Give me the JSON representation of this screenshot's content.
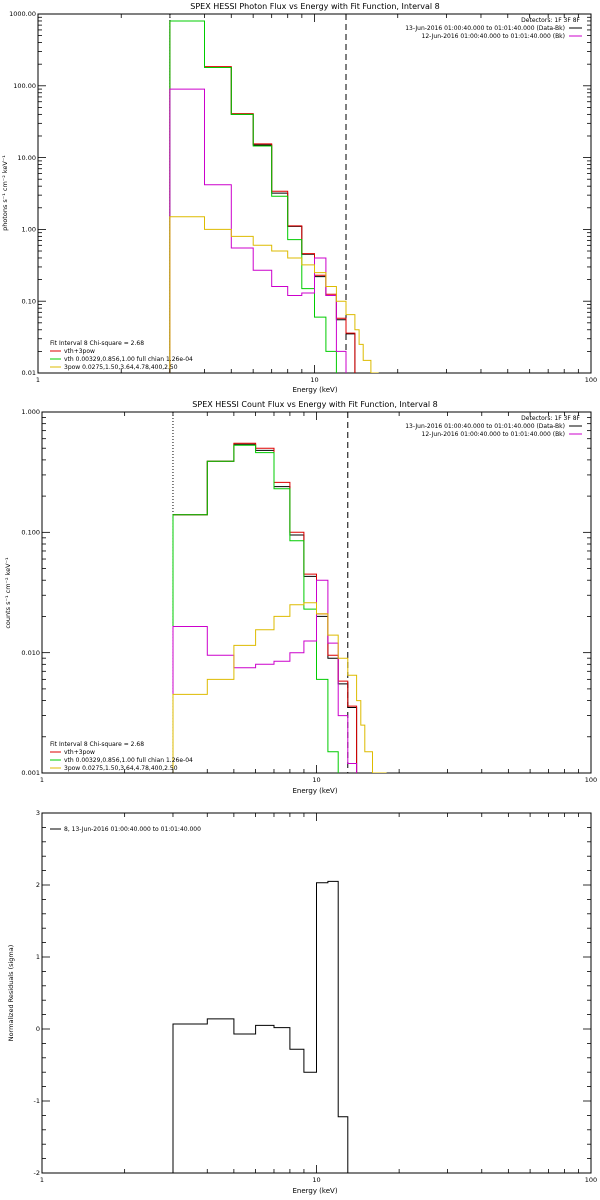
{
  "chart_data": [
    {
      "type": "line",
      "title": "SPEX HESSI Photon Flux vs Energy with Fit Function, Interval 8",
      "xlabel": "Energy (keV)",
      "ylabel": "photons s⁻¹ cm⁻² keV⁻¹",
      "xscale": "log",
      "yscale": "log",
      "xlim": [
        1,
        100
      ],
      "ylim": [
        0.01,
        1000
      ],
      "x_ticks": [
        {
          "v": 1,
          "label": "1"
        },
        {
          "v": 10,
          "label": "10"
        },
        {
          "v": 100,
          "label": "100"
        }
      ],
      "y_ticks": [
        {
          "v": 0.01,
          "label": "0.01"
        },
        {
          "v": 0.1,
          "label": "0.10"
        },
        {
          "v": 1,
          "label": "1.00"
        },
        {
          "v": 10,
          "label": "10.00"
        },
        {
          "v": 100,
          "label": "100.00"
        },
        {
          "v": 1000,
          "label": "1000.00"
        }
      ],
      "vlines": [
        {
          "x": 3.0,
          "style": "dotted"
        },
        {
          "x": 13.0,
          "style": "dashed"
        }
      ],
      "header_lines": [
        {
          "text": "Detectors: 1F 3F 8F",
          "swatch": false
        },
        {
          "text": "13-Jun-2016 01:00:40.000 to 01:01:40.000 (Data-Bk)",
          "swatch": true,
          "color": "#000000"
        },
        {
          "text": "12-Jun-2016 01:00:40.000 to 01:01:40.000 (Bk)",
          "swatch": true,
          "color": "#cc00cc"
        }
      ],
      "fit_header": "Fit Interval 8   Chi-square = 2.68",
      "legend": [
        {
          "text": "vth+3pow",
          "color": "#dd0000"
        },
        {
          "text": "vth 0.00329,0.856,1.00  full chian 1.26e-04",
          "color": "#00cc00"
        },
        {
          "text": "3pow 0.0275,1.50,3.64,4.78,400,2.50",
          "color": "#ddbb00"
        }
      ],
      "bin_edges": [
        3.0,
        3.5,
        4.0,
        4.5,
        5.0,
        5.5,
        6.0,
        6.5,
        7.0,
        7.5,
        8.0,
        8.5,
        9.0,
        9.5,
        10.0,
        10.5,
        11.0,
        11.5,
        12.0,
        12.5,
        13.0,
        13.5,
        14.0,
        14.5,
        15.0,
        16.0,
        17.0,
        18.0
      ],
      "series": [
        {
          "color": "#000000",
          "values": [
            800,
            800,
            180,
            180,
            40,
            40,
            15,
            15,
            3.2,
            3.2,
            1.1,
            1.1,
            0.45,
            0.45,
            0.22,
            0.22,
            0.12,
            0.12,
            0.055,
            0.055,
            0.035,
            0.035,
            null,
            null,
            null,
            null,
            null
          ]
        },
        {
          "color": "#dd0000",
          "values": [
            800,
            800,
            185,
            185,
            41,
            41,
            15.5,
            15.5,
            3.4,
            3.4,
            1.12,
            1.12,
            0.46,
            0.46,
            0.23,
            0.23,
            0.125,
            0.125,
            0.058,
            0.058,
            0.036,
            0.036,
            null,
            null,
            null,
            null,
            null
          ]
        },
        {
          "color": "#00cc00",
          "values": [
            800,
            800,
            180,
            180,
            40,
            40,
            14.5,
            14.5,
            2.9,
            2.9,
            0.72,
            0.72,
            0.15,
            0.15,
            0.06,
            0.06,
            0.02,
            0.02,
            null,
            null,
            null,
            null,
            null,
            null,
            null,
            null,
            null
          ]
        },
        {
          "color": "#cc00cc",
          "values": [
            90,
            90,
            4.2,
            4.2,
            0.55,
            0.55,
            0.27,
            0.27,
            0.16,
            0.16,
            0.12,
            0.12,
            0.13,
            0.13,
            0.4,
            0.4,
            0.12,
            0.12,
            0.02,
            0.02,
            0.008,
            0.008,
            null,
            null,
            null,
            null,
            null
          ]
        },
        {
          "color": "#ddbb00",
          "values": [
            1.5,
            1.5,
            1.0,
            1.0,
            0.8,
            0.8,
            0.6,
            0.6,
            0.5,
            0.5,
            0.4,
            0.4,
            0.32,
            0.32,
            0.25,
            0.25,
            0.16,
            0.16,
            0.1,
            0.1,
            0.065,
            0.065,
            0.04,
            0.025,
            0.015,
            0.01,
            0.008
          ]
        }
      ]
    },
    {
      "type": "line",
      "title": "SPEX HESSI Count Flux vs Energy with Fit Function, Interval 8",
      "xlabel": "Energy (keV)",
      "ylabel": "counts s⁻¹ cm⁻² keV⁻¹",
      "xscale": "log",
      "yscale": "log",
      "xlim": [
        1,
        100
      ],
      "ylim": [
        0.001,
        1
      ],
      "x_ticks": [
        {
          "v": 1,
          "label": "1"
        },
        {
          "v": 10,
          "label": "10"
        },
        {
          "v": 100,
          "label": "100"
        }
      ],
      "y_ticks": [
        {
          "v": 0.001,
          "label": "0.001"
        },
        {
          "v": 0.01,
          "label": "0.010"
        },
        {
          "v": 0.1,
          "label": "0.100"
        },
        {
          "v": 1,
          "label": "1.000"
        }
      ],
      "vlines": [
        {
          "x": 3.0,
          "style": "dotted"
        },
        {
          "x": 13.0,
          "style": "dashed"
        }
      ],
      "header_lines": [
        {
          "text": "Detectors: 1F 3F 8F",
          "swatch": false
        },
        {
          "text": "13-Jun-2016 01:00:40.000 to 01:01:40.000 (Data-Bk)",
          "swatch": true,
          "color": "#000000"
        },
        {
          "text": "12-Jun-2016 01:00:40.000 to 01:01:40.000 (Bk)",
          "swatch": true,
          "color": "#cc00cc"
        }
      ],
      "fit_header": "Fit Interval 8   Chi-square = 2.68",
      "legend": [
        {
          "text": "vth+3pow",
          "color": "#dd0000"
        },
        {
          "text": "vth 0.00329,0.856,1.00  full chian 1.26e-04",
          "color": "#00cc00"
        },
        {
          "text": "3pow 0.0275,1.50,3.64,4.78,400,2.50",
          "color": "#ddbb00"
        }
      ],
      "bin_edges": [
        3.0,
        3.5,
        4.0,
        4.5,
        5.0,
        5.5,
        6.0,
        6.5,
        7.0,
        7.5,
        8.0,
        8.5,
        9.0,
        9.5,
        10.0,
        10.5,
        11.0,
        11.5,
        12.0,
        12.5,
        13.0,
        13.5,
        14.0,
        14.5,
        15.0,
        16.0,
        17.0,
        18.0
      ],
      "series": [
        {
          "color": "#000000",
          "values": [
            0.14,
            0.14,
            0.39,
            0.39,
            0.54,
            0.54,
            0.48,
            0.48,
            0.24,
            0.24,
            0.095,
            0.095,
            0.043,
            0.043,
            0.02,
            0.02,
            0.009,
            0.009,
            0.0055,
            0.0055,
            0.0035,
            0.0035,
            null,
            null,
            null,
            null,
            null
          ]
        },
        {
          "color": "#dd0000",
          "values": [
            0.14,
            0.14,
            0.39,
            0.39,
            0.55,
            0.55,
            0.5,
            0.5,
            0.26,
            0.26,
            0.1,
            0.1,
            0.045,
            0.045,
            0.021,
            0.021,
            0.0095,
            0.0095,
            0.0058,
            0.0058,
            0.0036,
            0.0036,
            null,
            null,
            null,
            null,
            null
          ]
        },
        {
          "color": "#00cc00",
          "values": [
            0.14,
            0.14,
            0.39,
            0.39,
            0.53,
            0.53,
            0.46,
            0.46,
            0.23,
            0.23,
            0.085,
            0.085,
            0.023,
            0.023,
            0.006,
            0.006,
            0.0015,
            0.0015,
            null,
            null,
            null,
            null,
            null,
            null,
            null,
            null,
            null
          ]
        },
        {
          "color": "#cc00cc",
          "values": [
            0.0165,
            0.0165,
            0.0095,
            0.0095,
            0.0075,
            0.0075,
            0.008,
            0.008,
            0.0085,
            0.0085,
            0.01,
            0.01,
            0.0125,
            0.0125,
            0.04,
            0.04,
            0.012,
            0.012,
            0.003,
            0.003,
            0.0012,
            0.0012,
            null,
            null,
            null,
            null,
            null
          ]
        },
        {
          "color": "#ddbb00",
          "values": [
            0.0045,
            0.0045,
            0.006,
            0.006,
            0.0115,
            0.0115,
            0.0155,
            0.0155,
            0.02,
            0.02,
            0.025,
            0.025,
            0.026,
            0.026,
            0.021,
            0.021,
            0.014,
            0.014,
            0.009,
            0.009,
            0.0065,
            0.0065,
            0.004,
            0.0025,
            0.0015,
            0.001,
            0.001
          ]
        }
      ]
    },
    {
      "type": "line",
      "title": "",
      "xlabel": "Energy (keV)",
      "ylabel": "Normalized Residuals (sigma)",
      "xscale": "log",
      "yscale": "linear",
      "xlim": [
        1,
        100
      ],
      "ylim": [
        -2,
        3
      ],
      "x_ticks": [
        {
          "v": 1,
          "label": "1"
        },
        {
          "v": 10,
          "label": "10"
        },
        {
          "v": 100,
          "label": "100"
        }
      ],
      "y_ticks": [
        {
          "v": -2,
          "label": "-2"
        },
        {
          "v": -1,
          "label": "-1"
        },
        {
          "v": 0,
          "label": "0"
        },
        {
          "v": 1,
          "label": "1"
        },
        {
          "v": 2,
          "label": "2"
        },
        {
          "v": 3,
          "label": "3"
        }
      ],
      "legend": [
        {
          "text": "8, 13-Jun-2016 01:00:40.000 to 01:01:40.000",
          "color": "#000000"
        }
      ],
      "bin_edges": [
        3.0,
        3.5,
        4.0,
        4.5,
        5.0,
        5.5,
        6.0,
        6.5,
        7.0,
        7.5,
        8.0,
        8.5,
        9.0,
        9.5,
        10.0,
        10.5,
        11.0,
        11.5,
        12.0,
        12.5,
        13.0
      ],
      "series": [
        {
          "color": "#000000",
          "values": [
            0.07,
            0.07,
            0.14,
            0.14,
            -0.07,
            -0.07,
            0.05,
            0.05,
            0.02,
            0.02,
            -0.28,
            -0.28,
            -0.6,
            -0.6,
            2.03,
            2.03,
            2.05,
            2.05,
            -1.22,
            -1.22
          ]
        }
      ]
    }
  ]
}
